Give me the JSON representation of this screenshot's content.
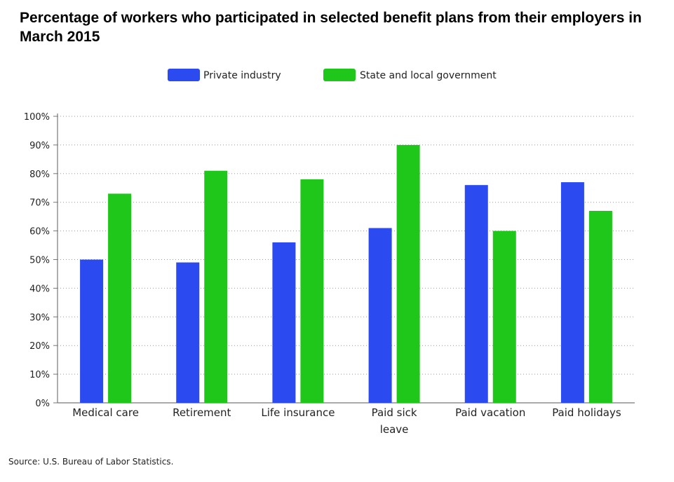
{
  "chart_data": {
    "type": "bar",
    "title": "Percentage of workers who participated in selected benefit plans from their employers in March 2015",
    "source": "Source: U.S. Bureau of Labor Statistics.",
    "categories": [
      [
        "Medical care"
      ],
      [
        "Retirement"
      ],
      [
        "Life insurance"
      ],
      [
        "Paid sick",
        "leave"
      ],
      [
        "Paid vacation"
      ],
      [
        "Paid holidays"
      ]
    ],
    "series": [
      {
        "name": "Private industry",
        "color": "#2b4bf0",
        "values": [
          50,
          49,
          56,
          61,
          76,
          77
        ]
      },
      {
        "name": "State and local government",
        "color": "#1fc71a",
        "values": [
          73,
          81,
          78,
          90,
          60,
          67
        ]
      }
    ],
    "yticks": [
      "0%",
      "10%",
      "20%",
      "30%",
      "40%",
      "50%",
      "60%",
      "70%",
      "80%",
      "90%",
      "100%"
    ],
    "ylim": [
      0,
      100
    ],
    "xlabel": "",
    "ylabel": "",
    "grid": true,
    "legend_position": "top"
  }
}
